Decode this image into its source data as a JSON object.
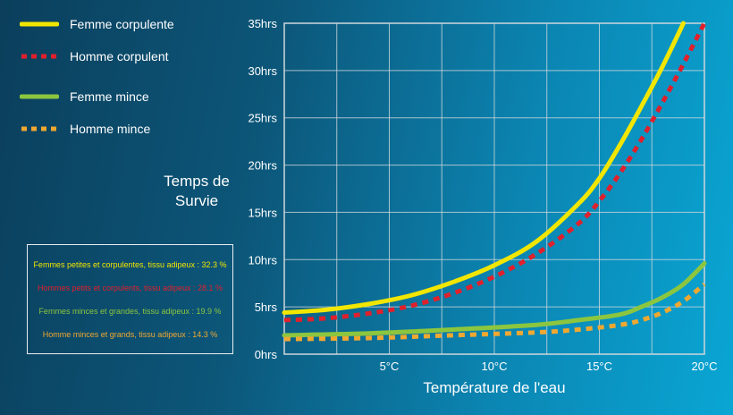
{
  "chart_data": {
    "type": "line",
    "xlabel": "Température de l'eau",
    "ylabel": "Temps de Survie",
    "xlim": [
      0,
      20
    ],
    "ylim": [
      0,
      35
    ],
    "x_ticks": [
      {
        "value": 5,
        "label": "5°C"
      },
      {
        "value": 10,
        "label": "10°C"
      },
      {
        "value": 15,
        "label": "15°C"
      },
      {
        "value": 20,
        "label": "20°C"
      }
    ],
    "y_ticks": [
      {
        "value": 0,
        "label": "0hrs"
      },
      {
        "value": 5,
        "label": "5hrs"
      },
      {
        "value": 10,
        "label": "10hrs"
      },
      {
        "value": 15,
        "label": "15hrs"
      },
      {
        "value": 20,
        "label": "20hrs"
      },
      {
        "value": 25,
        "label": "25hrs"
      },
      {
        "value": 30,
        "label": "30hrs"
      },
      {
        "value": 35,
        "label": "35hrs"
      }
    ],
    "grid": true,
    "legend_position": "top-left",
    "series": [
      {
        "name": "Femme corpulente",
        "color": "#f2e600",
        "style": "solid",
        "x": [
          0,
          2,
          4,
          6,
          8,
          10,
          12,
          14,
          15,
          16,
          17,
          18,
          19
        ],
        "y": [
          4.4,
          4.7,
          5.3,
          6.2,
          7.6,
          9.4,
          11.9,
          15.9,
          18.6,
          22.2,
          26.2,
          30.4,
          35
        ]
      },
      {
        "name": "Homme corpulent",
        "color": "#e0202c",
        "style": "dashed",
        "x": [
          0,
          2,
          4,
          6,
          8,
          10,
          12,
          14,
          15,
          16,
          17,
          18,
          19,
          20
        ],
        "y": [
          3.6,
          3.8,
          4.3,
          5.1,
          6.4,
          8.2,
          10.6,
          13.8,
          16.2,
          19.2,
          22.7,
          26.6,
          30.7,
          35
        ]
      },
      {
        "name": "Femme mince",
        "color": "#8cc63f",
        "style": "solid",
        "x": [
          0,
          4,
          8,
          12,
          14,
          16,
          17,
          18,
          19,
          20
        ],
        "y": [
          2.0,
          2.2,
          2.6,
          3.1,
          3.6,
          4.2,
          5.0,
          6.0,
          7.4,
          9.6
        ]
      },
      {
        "name": "Homme mince",
        "color": "#f0a830",
        "style": "dashed",
        "x": [
          0,
          4,
          8,
          12,
          14,
          16,
          17,
          18,
          19,
          20
        ],
        "y": [
          1.6,
          1.7,
          2.0,
          2.3,
          2.6,
          3.1,
          3.6,
          4.4,
          5.6,
          7.4
        ]
      }
    ]
  },
  "notes": [
    {
      "text": "Femmes petites et corpulentes, tissu adipeux : 32.3 %",
      "color": "#f2e600"
    },
    {
      "text": "Hommes petits et corpulents, tissu adipeux : 28.1 %",
      "color": "#e0202c"
    },
    {
      "text": "Femmes minces et grandes, tissu adipeux : 19.9 %",
      "color": "#8cc63f"
    },
    {
      "text": "Homme minces et grands, tissu adipeux : 14.3 %",
      "color": "#f0a830"
    }
  ],
  "colors": {
    "background_left": "#0b3f5c",
    "background_right": "#0aa6d4",
    "grid": "#d0d7dc"
  }
}
